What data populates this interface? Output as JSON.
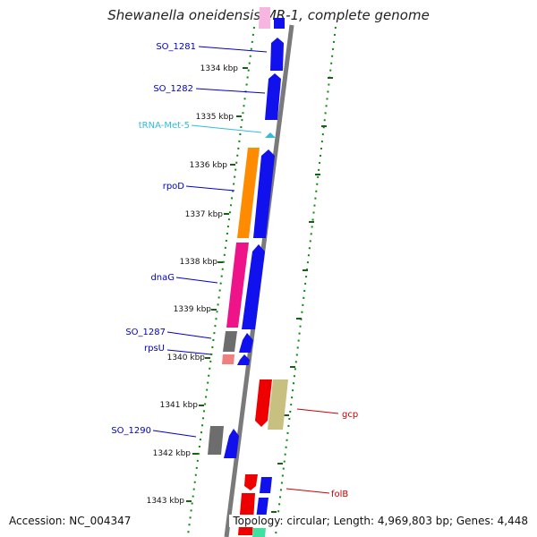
{
  "title": "Shewanella oneidensis MR-1, complete genome",
  "footer": {
    "accession": "Accession: NC_004347",
    "summary": "Topology: circular; Length: 4,969,803 bp; Genes: 4,448"
  },
  "colors": {
    "backbone": "#808080",
    "dots": "#0a8a0a",
    "ticks": "#1a5e1a",
    "forward_label": "#0000cc",
    "reverse_label": "#cc0000",
    "trna_label": "#33bbdd"
  },
  "scale_labels": [
    "1334 kbp",
    "1335 kbp",
    "1336 kbp",
    "1337 kbp",
    "1338 kbp",
    "1339 kbp",
    "1340 kbp",
    "1341 kbp",
    "1342 kbp",
    "1343 kbp"
  ],
  "gene_labels": [
    {
      "text": "SO_1281",
      "color": "#0000cc",
      "strand": "left"
    },
    {
      "text": "SO_1282",
      "color": "#0000cc",
      "strand": "left"
    },
    {
      "text": "tRNA-Met-5",
      "color": "#33bbdd",
      "strand": "left"
    },
    {
      "text": "rpoD",
      "color": "#0000cc",
      "strand": "left"
    },
    {
      "text": "dnaG",
      "color": "#0000cc",
      "strand": "left"
    },
    {
      "text": "SO_1287",
      "color": "#0000cc",
      "strand": "left"
    },
    {
      "text": "rpsU",
      "color": "#0000cc",
      "strand": "left"
    },
    {
      "text": "SO_1290",
      "color": "#0000cc",
      "strand": "left"
    },
    {
      "text": "gcp",
      "color": "#cc0000",
      "strand": "right"
    },
    {
      "text": "folB",
      "color": "#cc0000",
      "strand": "right"
    }
  ]
}
